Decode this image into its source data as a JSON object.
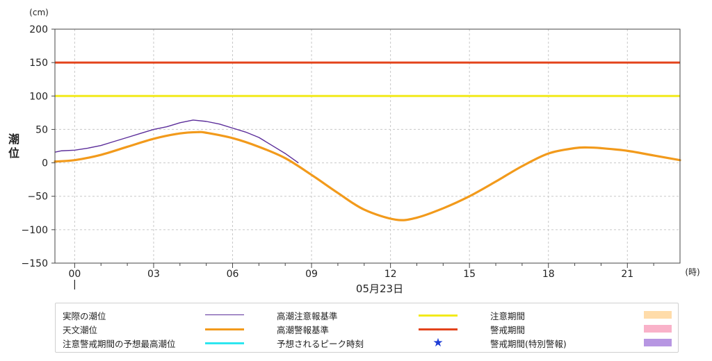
{
  "chart_data": {
    "type": "line",
    "ylabel": "潮位",
    "yunit": "(cm)",
    "xunit": "(時)",
    "date_label": "05月23日",
    "ylim": [
      -150,
      200
    ],
    "yticks": [
      -150,
      -100,
      -50,
      0,
      50,
      100,
      150,
      200
    ],
    "ytick_labels": [
      "−150",
      "−100",
      "−50",
      "0",
      "50",
      "100",
      "150",
      "200"
    ],
    "xlim": [
      -0.75,
      23
    ],
    "xticks": [
      0,
      3,
      6,
      9,
      12,
      15,
      18,
      21
    ],
    "xtick_labels": [
      "00",
      "03",
      "06",
      "09",
      "12",
      "15",
      "18",
      "21"
    ],
    "grid": true,
    "series": [
      {
        "name": "実際の潮位",
        "color": "#5b2d9a",
        "x": [
          -0.75,
          -0.5,
          0,
          0.5,
          1,
          1.5,
          2,
          2.5,
          3,
          3.5,
          4,
          4.5,
          5,
          5.5,
          6,
          6.5,
          7,
          7.5,
          8,
          8.5
        ],
        "values": [
          16,
          18,
          19,
          22,
          26,
          32,
          38,
          44,
          50,
          54,
          60,
          64,
          62,
          58,
          52,
          46,
          38,
          26,
          14,
          0
        ]
      },
      {
        "name": "天文潮位",
        "color": "#f29a1b",
        "x": [
          -0.75,
          0,
          1,
          2,
          3,
          4,
          4.7,
          5,
          6,
          7,
          8,
          9,
          10,
          11,
          12.2,
          13,
          14,
          15,
          16,
          17,
          18,
          19,
          19.5,
          20,
          21,
          22,
          23
        ],
        "values": [
          2,
          4,
          12,
          24,
          36,
          44,
          46,
          45,
          37,
          24,
          7,
          -18,
          -45,
          -70,
          -85,
          -82,
          -68,
          -50,
          -28,
          -5,
          14,
          22,
          23,
          22,
          18,
          11,
          4
        ]
      },
      {
        "name": "高潮注意報基準",
        "color": "#f2ea1a",
        "values": [
          100
        ]
      },
      {
        "name": "高潮警報基準",
        "color": "#e3431b",
        "values": [
          150
        ]
      }
    ]
  },
  "legend": {
    "items": [
      {
        "label": "実際の潮位",
        "kind": "line",
        "color": "#5b2d9a"
      },
      {
        "label": "高潮注意報基準",
        "kind": "line",
        "color": "#f2ea1a"
      },
      {
        "label": "注意期間",
        "kind": "rect",
        "color": "#ffdcaa"
      },
      {
        "label": "天文潮位",
        "kind": "line",
        "color": "#f29a1b"
      },
      {
        "label": "高潮警報基準",
        "kind": "line",
        "color": "#e3431b"
      },
      {
        "label": "警戒期間",
        "kind": "rect",
        "color": "#f9b2c9"
      },
      {
        "label": "注意警戒期間の予想最高潮位",
        "kind": "line",
        "color": "#2de6ef"
      },
      {
        "label": "予想されるピーク時刻",
        "kind": "star",
        "color": "#1f3ed6",
        "symbol": "★"
      },
      {
        "label": "警戒期間(特別警報)",
        "kind": "rect",
        "color": "#b796e2"
      }
    ]
  }
}
